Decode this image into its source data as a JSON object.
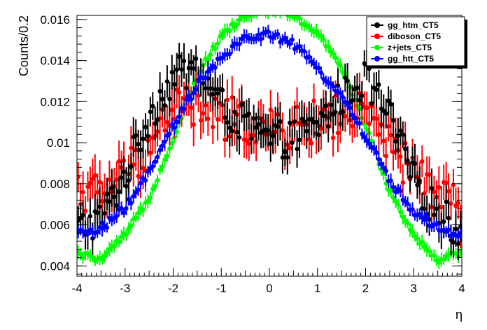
{
  "chart_data": {
    "type": "scatter",
    "title": "",
    "xlabel": "η",
    "ylabel": "Counts/0.2",
    "xlim": [
      -4,
      4
    ],
    "ylim": [
      0.0035,
      0.0162
    ],
    "x_ticks": [
      -4,
      -3,
      -2,
      -1,
      0,
      1,
      2,
      3,
      4
    ],
    "x_tick_labels": [
      "-4",
      "-3",
      "-2",
      "-1",
      "0",
      "1",
      "2",
      "3",
      "4"
    ],
    "y_ticks": [
      0.004,
      0.006,
      0.008,
      0.01,
      0.012,
      0.014,
      0.016
    ],
    "y_tick_labels": [
      "0.004",
      "0.006",
      "0.008",
      "0.01",
      "0.012",
      "0.014",
      "0.016"
    ],
    "legend": {
      "placement": "top-right",
      "entries": [
        "gg_htm_CT5",
        "diboson_CT5",
        "z+jets_CT5",
        "gg_htt_CT5"
      ]
    },
    "bin_width": 0.05,
    "series": [
      {
        "name": "gg_htm_CT5",
        "color": "#000000",
        "x": [
          -4,
          -3.5,
          -3,
          -2.5,
          -2,
          -1.5,
          -1,
          -0.5,
          0,
          0.5,
          1,
          1.5,
          2,
          2.5,
          3,
          3.5,
          4
        ],
        "y": [
          0.0058,
          0.0063,
          0.0084,
          0.0113,
          0.0132,
          0.0136,
          0.0118,
          0.0108,
          0.0101,
          0.0102,
          0.0108,
          0.0122,
          0.0131,
          0.0112,
          0.0082,
          0.0066,
          0.0056
        ],
        "error": 0.0008
      },
      {
        "name": "diboson_CT5",
        "color": "#ff0000",
        "x": [
          -4,
          -3.5,
          -3,
          -2.5,
          -2,
          -1.5,
          -1,
          -0.5,
          0,
          0.5,
          1,
          1.5,
          2,
          2.5,
          3,
          3.5,
          4
        ],
        "y": [
          0.0078,
          0.0074,
          0.0085,
          0.0098,
          0.0118,
          0.0117,
          0.0112,
          0.011,
          0.0105,
          0.0107,
          0.011,
          0.0114,
          0.0113,
          0.0097,
          0.0085,
          0.0076,
          0.0068
        ],
        "error": 0.0009
      },
      {
        "name": "z+jets_CT5",
        "color": "#00ff00",
        "x": [
          -4,
          -3.5,
          -3,
          -2.5,
          -2,
          -1.5,
          -1,
          -0.5,
          0,
          0.5,
          1,
          1.5,
          2,
          2.5,
          3,
          3.5,
          4
        ],
        "y": [
          0.0046,
          0.0043,
          0.0055,
          0.0073,
          0.0102,
          0.0133,
          0.0152,
          0.0162,
          0.0165,
          0.0162,
          0.0153,
          0.0137,
          0.0108,
          0.0077,
          0.0055,
          0.0043,
          0.0047
        ],
        "error": 0.0003
      },
      {
        "name": "gg_htt_CT5",
        "color": "#0000ff",
        "x": [
          -4,
          -3.5,
          -3,
          -2.5,
          -2,
          -1.5,
          -1,
          -0.5,
          0,
          0.5,
          1,
          1.5,
          2,
          2.5,
          3,
          3.5,
          4
        ],
        "y": [
          0.0055,
          0.0058,
          0.0068,
          0.0085,
          0.0108,
          0.0128,
          0.0141,
          0.0151,
          0.0153,
          0.0148,
          0.0136,
          0.0123,
          0.0103,
          0.0082,
          0.0066,
          0.0058,
          0.0054
        ],
        "error": 0.0003
      }
    ]
  }
}
